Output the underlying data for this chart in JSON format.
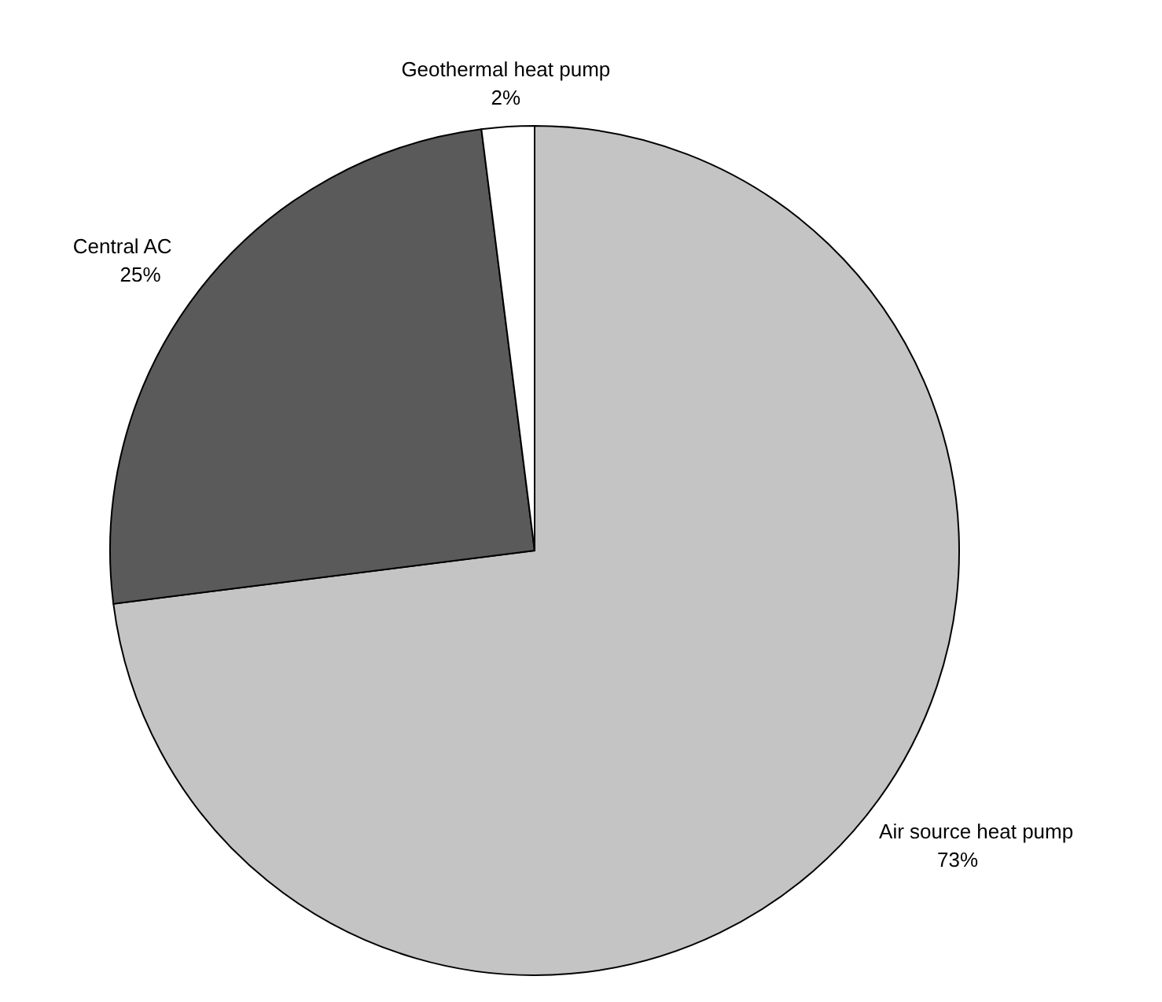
{
  "chart_data": {
    "type": "pie",
    "categories": [
      "Air source heat pump",
      "Central AC",
      "Geothermal heat pump"
    ],
    "values": [
      73,
      25,
      2
    ],
    "colors": [
      "#c4c4c4",
      "#5a5a5a",
      "#ffffff"
    ],
    "value_labels": [
      "73%",
      "25%",
      "2%"
    ]
  }
}
